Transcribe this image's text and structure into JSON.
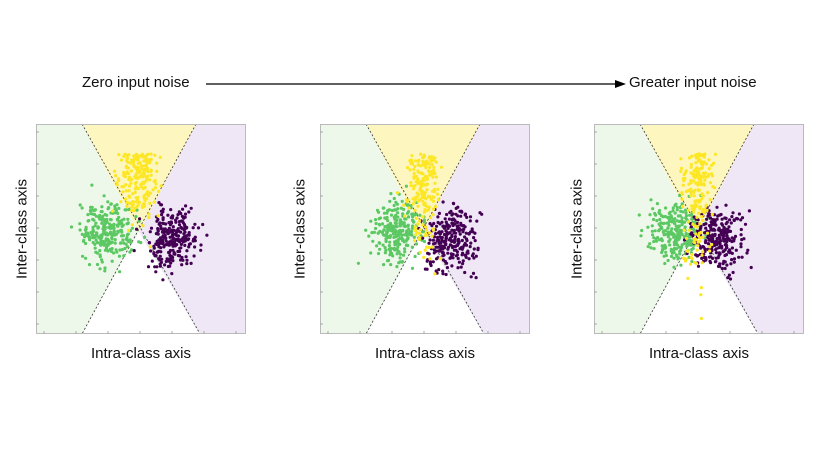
{
  "header": {
    "left_label": "Zero input noise",
    "right_label": "Greater input noise"
  },
  "colors": {
    "class_a": "#5cc863",
    "class_b": "#440154",
    "class_c": "#fde725",
    "region_a": "#eef8ea",
    "region_b": "#efe7f6",
    "region_c": "#fdf6bf"
  },
  "panels": [
    {
      "xlabel": "Intra-class axis",
      "ylabel": "Inter-class axis",
      "noise_level": 0.0
    },
    {
      "xlabel": "Intra-class axis",
      "ylabel": "Inter-class axis",
      "noise_level": 0.5
    },
    {
      "xlabel": "Intra-class axis",
      "ylabel": "Inter-class axis",
      "noise_level": 1.0
    }
  ]
}
